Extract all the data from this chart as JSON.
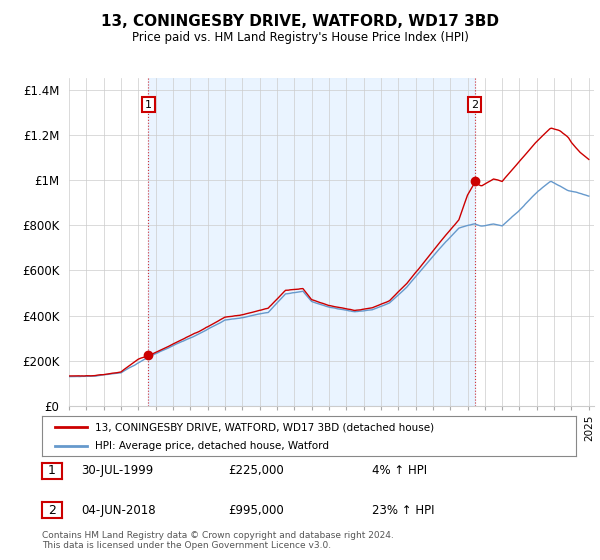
{
  "title": "13, CONINGESBY DRIVE, WATFORD, WD17 3BD",
  "subtitle": "Price paid vs. HM Land Registry's House Price Index (HPI)",
  "legend_line1": "13, CONINGESBY DRIVE, WATFORD, WD17 3BD (detached house)",
  "legend_line2": "HPI: Average price, detached house, Watford",
  "annotation1_date": "30-JUL-1999",
  "annotation1_price": "£225,000",
  "annotation1_hpi": "4% ↑ HPI",
  "annotation2_date": "04-JUN-2018",
  "annotation2_price": "£995,000",
  "annotation2_hpi": "23% ↑ HPI",
  "footer": "Contains HM Land Registry data © Crown copyright and database right 2024.\nThis data is licensed under the Open Government Licence v3.0.",
  "ylim": [
    0,
    1450000
  ],
  "yticks": [
    0,
    200000,
    400000,
    600000,
    800000,
    1000000,
    1200000,
    1400000
  ],
  "ytick_labels": [
    "£0",
    "£200K",
    "£400K",
    "£600K",
    "£800K",
    "£1M",
    "£1.2M",
    "£1.4M"
  ],
  "line_color_property": "#cc0000",
  "line_color_hpi": "#6699cc",
  "fill_color": "#ddeeff",
  "background_color": "#ffffff",
  "grid_color": "#cccccc",
  "annotation_box_color": "#cc0000",
  "purchase1_x": 1999.58,
  "purchase1_y": 225000,
  "purchase2_x": 2018.42,
  "purchase2_y": 995000,
  "xlim_left": 1995.0,
  "xlim_right": 2025.3
}
